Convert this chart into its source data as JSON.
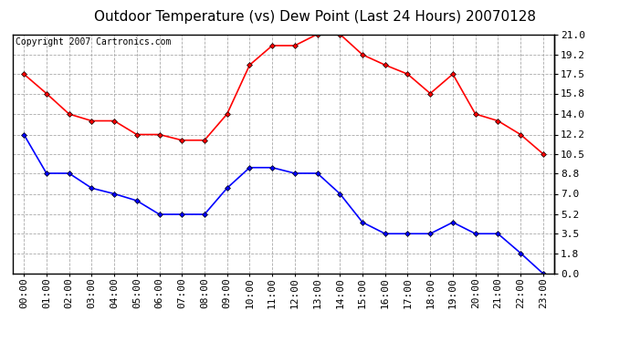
{
  "title": "Outdoor Temperature (vs) Dew Point (Last 24 Hours) 20070128",
  "copyright": "Copyright 2007 Cartronics.com",
  "hours": [
    "00:00",
    "01:00",
    "02:00",
    "03:00",
    "04:00",
    "05:00",
    "06:00",
    "07:00",
    "08:00",
    "09:00",
    "10:00",
    "11:00",
    "12:00",
    "13:00",
    "14:00",
    "15:00",
    "16:00",
    "17:00",
    "18:00",
    "19:00",
    "20:00",
    "21:00",
    "22:00",
    "23:00"
  ],
  "temp": [
    17.5,
    15.8,
    14.0,
    13.4,
    13.4,
    12.2,
    12.2,
    11.7,
    11.7,
    14.0,
    18.3,
    20.0,
    20.0,
    21.0,
    21.0,
    19.2,
    18.3,
    17.5,
    15.8,
    17.5,
    14.0,
    13.4,
    12.2,
    10.5
  ],
  "dew": [
    12.2,
    8.8,
    8.8,
    7.5,
    7.0,
    6.4,
    5.2,
    5.2,
    5.2,
    7.5,
    9.3,
    9.3,
    8.8,
    8.8,
    7.0,
    4.5,
    3.5,
    3.5,
    3.5,
    4.5,
    3.5,
    3.5,
    1.8,
    0.0
  ],
  "temp_color": "#ff0000",
  "dew_color": "#0000ff",
  "bg_color": "#ffffff",
  "grid_color": "#aaaaaa",
  "ylim": [
    0.0,
    21.0
  ],
  "yticks": [
    0.0,
    1.8,
    3.5,
    5.2,
    7.0,
    8.8,
    10.5,
    12.2,
    14.0,
    15.8,
    17.5,
    19.2,
    21.0
  ],
  "title_fontsize": 11,
  "copyright_fontsize": 7,
  "axis_fontsize": 8,
  "marker": "D",
  "marker_size": 3,
  "line_width": 1.2
}
